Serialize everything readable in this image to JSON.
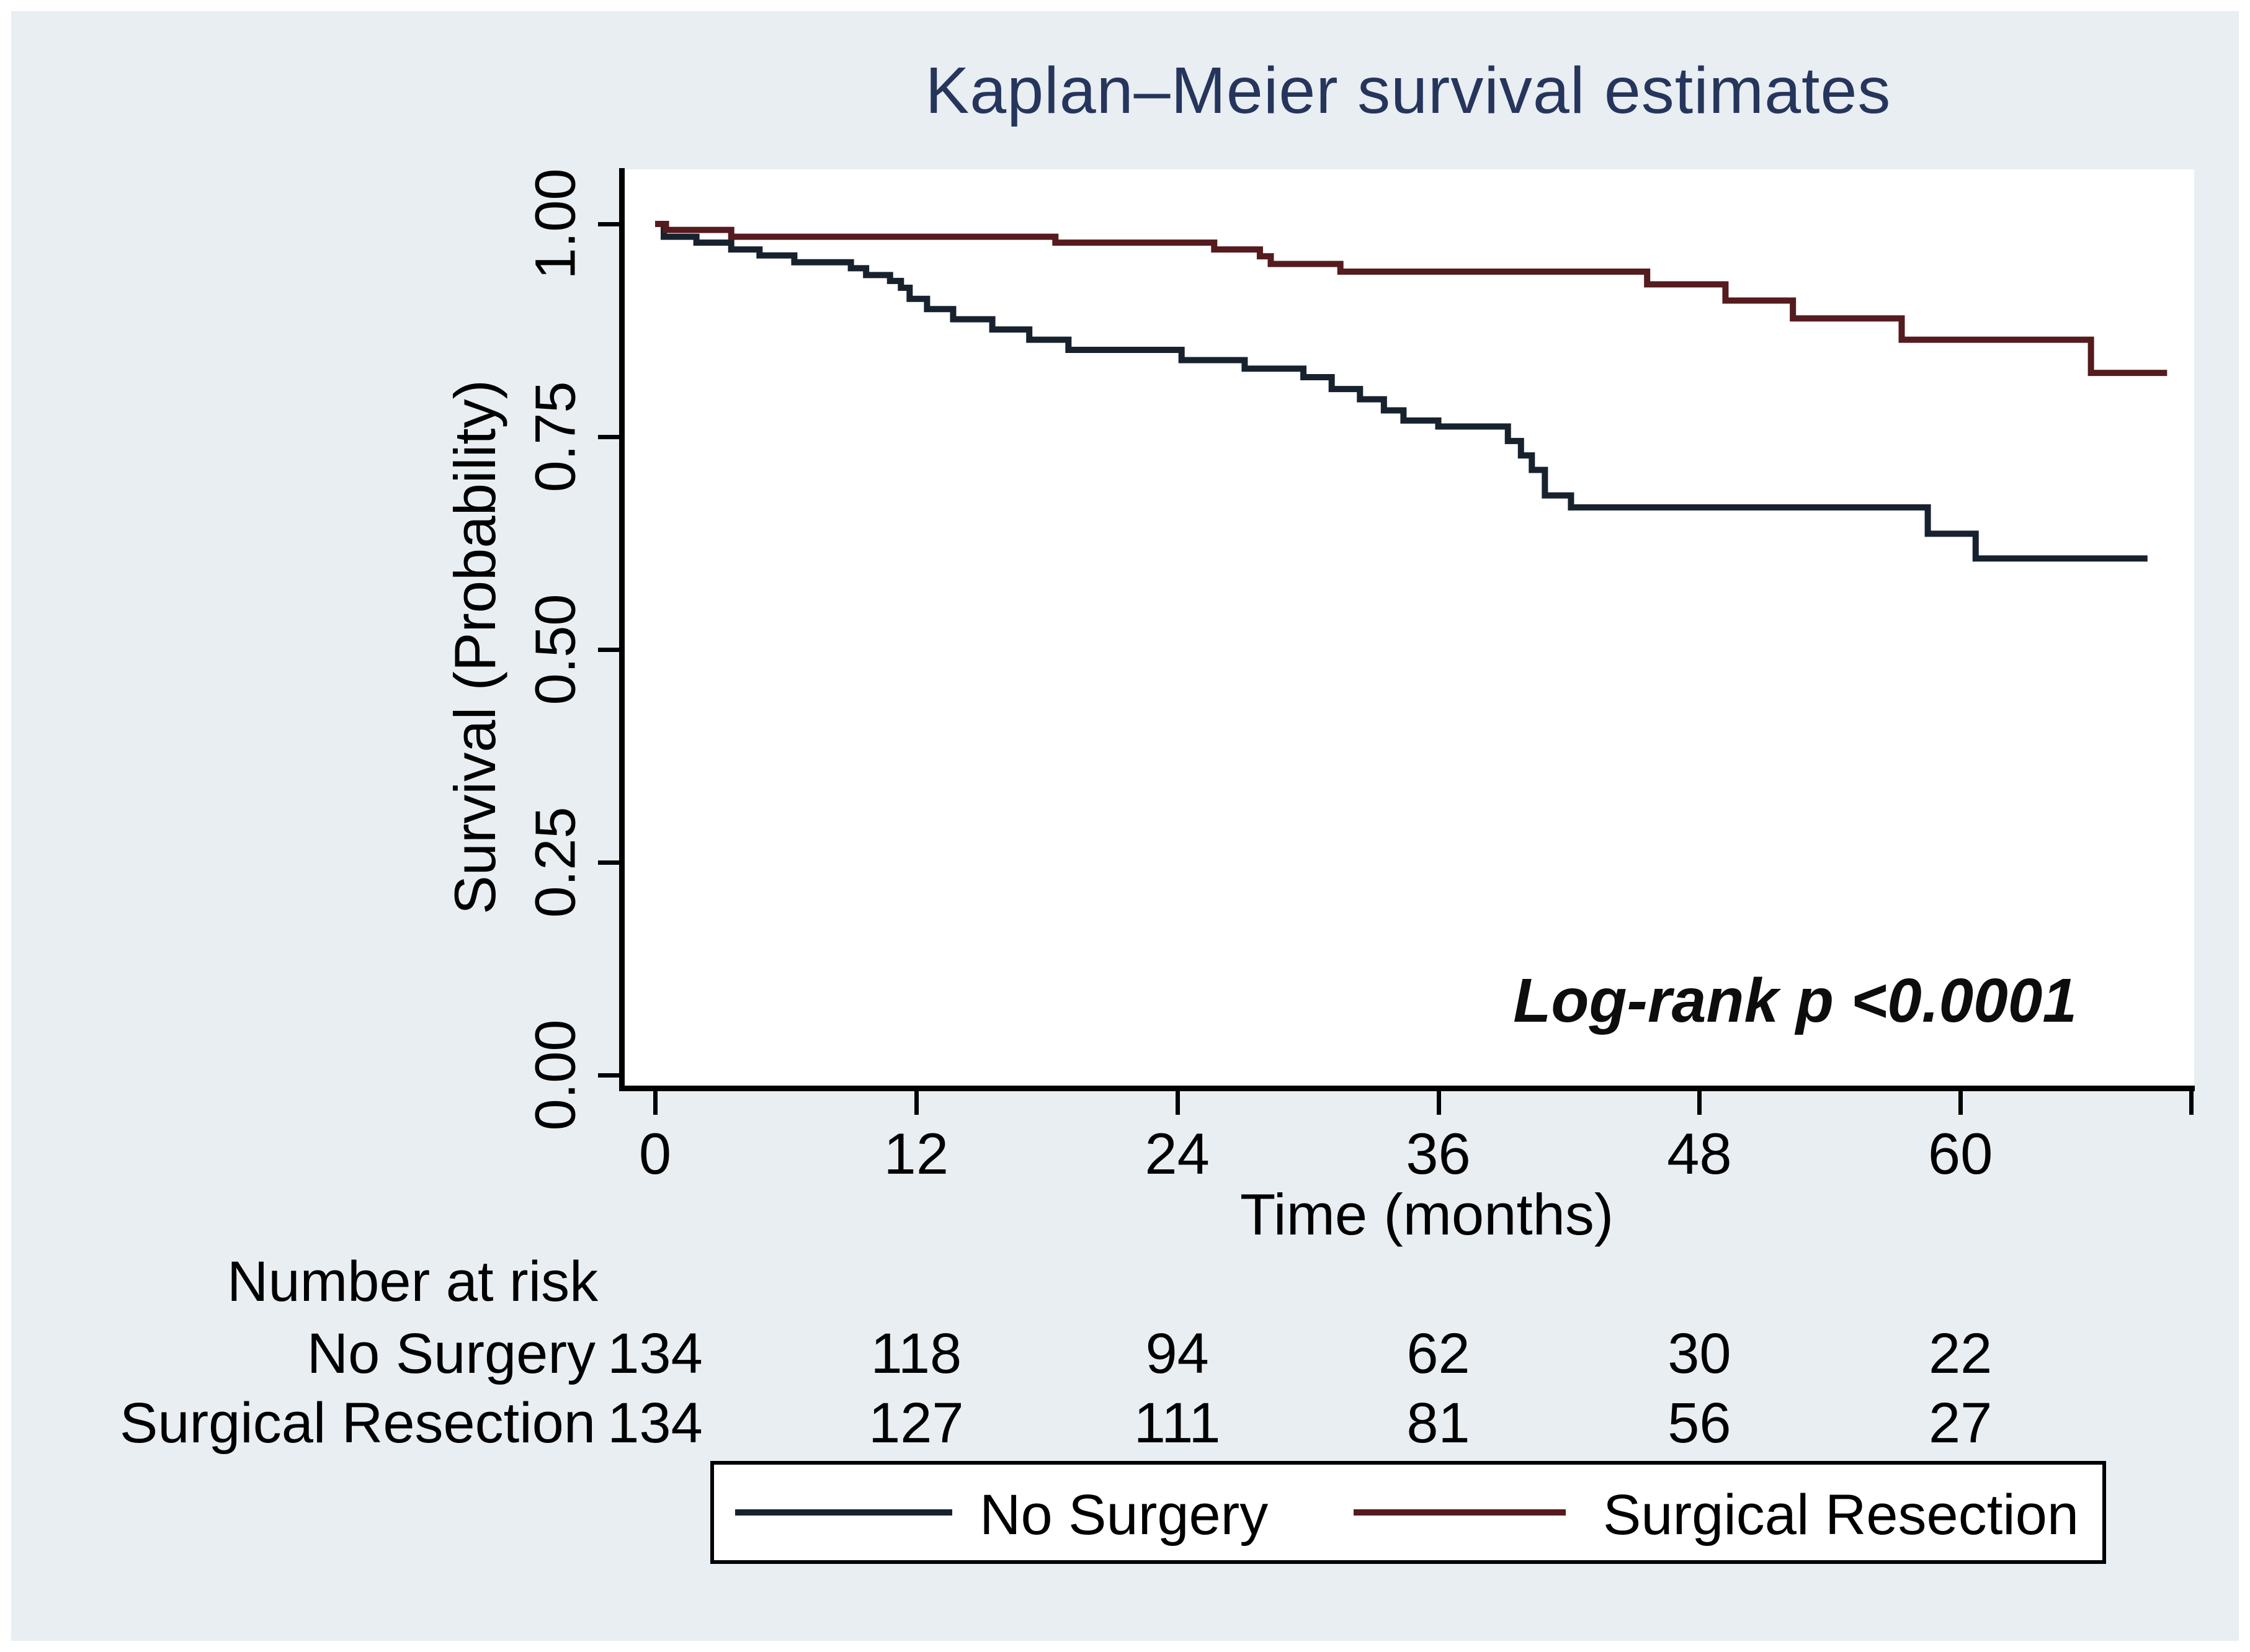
{
  "colors": {
    "canvas_background": "#e8eef1",
    "plot_background": "#ffffff",
    "title_color": "#26355c",
    "axis_color": "#000000",
    "no_surgery_line": "#17222e",
    "surgical_resection_line": "#551b1e"
  },
  "chart_data": {
    "type": "line",
    "subtype": "kaplan-meier-step",
    "title": "Kaplan–Meier survival estimates",
    "xlabel": "Time (months)",
    "ylabel": "Survival (Probability)",
    "annotation": "Log-rank p <0.0001",
    "xlim": [
      0,
      70.6
    ],
    "ylim": [
      0.0,
      1.0
    ],
    "x_ticks": [
      {
        "t": 0,
        "label": "0"
      },
      {
        "t": 12,
        "label": "12"
      },
      {
        "t": 24,
        "label": "24"
      },
      {
        "t": 36,
        "label": "36"
      },
      {
        "t": 48,
        "label": "48"
      },
      {
        "t": 60,
        "label": "60"
      },
      {
        "t": 70.6,
        "label": ""
      }
    ],
    "y_ticks": [
      {
        "p": 0.0,
        "label": "0.00"
      },
      {
        "p": 0.25,
        "label": "0.25"
      },
      {
        "p": 0.5,
        "label": "0.50"
      },
      {
        "p": 0.75,
        "label": "0.75"
      },
      {
        "p": 1.0,
        "label": "1.00"
      }
    ],
    "grid": false,
    "legend_position": "bottom",
    "series": [
      {
        "name": "No Surgery",
        "color": "#17222e",
        "end_time": 68.6,
        "steps": [
          [
            0,
            1.0
          ],
          [
            0.4,
            0.985
          ],
          [
            1.9,
            0.978
          ],
          [
            3.5,
            0.97
          ],
          [
            4.8,
            0.963
          ],
          [
            6.4,
            0.955
          ],
          [
            9.0,
            0.948
          ],
          [
            9.7,
            0.94
          ],
          [
            10.8,
            0.933
          ],
          [
            11.3,
            0.925
          ],
          [
            11.7,
            0.912
          ],
          [
            12.5,
            0.9
          ],
          [
            13.7,
            0.888
          ],
          [
            15.5,
            0.876
          ],
          [
            17.2,
            0.864
          ],
          [
            19.0,
            0.852
          ],
          [
            24.2,
            0.84
          ],
          [
            27.1,
            0.83
          ],
          [
            29.8,
            0.82
          ],
          [
            31.1,
            0.806
          ],
          [
            32.4,
            0.794
          ],
          [
            33.5,
            0.781
          ],
          [
            34.4,
            0.769
          ],
          [
            36.0,
            0.762
          ],
          [
            39.2,
            0.745
          ],
          [
            39.8,
            0.728
          ],
          [
            40.3,
            0.711
          ],
          [
            40.9,
            0.681
          ],
          [
            42.1,
            0.667
          ],
          [
            58.5,
            0.636
          ],
          [
            60.7,
            0.607
          ]
        ]
      },
      {
        "name": "Surgical Resection",
        "color": "#551b1e",
        "end_time": 69.5,
        "steps": [
          [
            0,
            1.0
          ],
          [
            0.5,
            0.993
          ],
          [
            3.5,
            0.985
          ],
          [
            18.4,
            0.978
          ],
          [
            25.7,
            0.97
          ],
          [
            27.8,
            0.962
          ],
          [
            28.3,
            0.953
          ],
          [
            31.5,
            0.944
          ],
          [
            45.6,
            0.929
          ],
          [
            49.2,
            0.91
          ],
          [
            52.3,
            0.889
          ],
          [
            57.3,
            0.864
          ],
          [
            66.0,
            0.825
          ]
        ]
      }
    ],
    "risk_table": {
      "title": "Number at risk",
      "times": [
        0,
        12,
        24,
        36,
        48,
        60
      ],
      "rows": [
        {
          "label": "No Surgery",
          "counts": [
            "134",
            "118",
            "94",
            "62",
            "30",
            "22"
          ]
        },
        {
          "label": "Surgical Resection",
          "counts": [
            "134",
            "127",
            "111",
            "81",
            "56",
            "27"
          ]
        }
      ]
    }
  },
  "legend": {
    "items": [
      {
        "label": "No Surgery",
        "color": "#17222e"
      },
      {
        "label": "Surgical Resection",
        "color": "#551b1e"
      }
    ]
  }
}
